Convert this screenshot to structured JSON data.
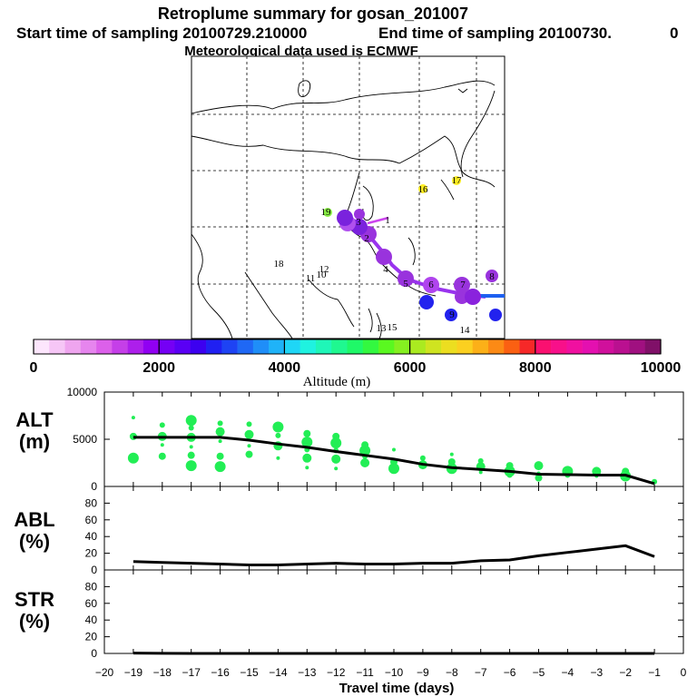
{
  "title": {
    "line1": "Retroplume summary for gosan_201007",
    "line2_left": "Start time of sampling 20100729.210000",
    "line2_right": "End time of sampling 20100730.",
    "line2_tail": "0",
    "line3": "Meteorological data used is ECMWF"
  },
  "colorbar": {
    "ticks": [
      "0",
      "2000",
      "4000",
      "6000",
      "8000",
      "10000"
    ],
    "label": "Altitude (m)",
    "colors": [
      "#fde6fd",
      "#f6c6f6",
      "#efa5ef",
      "#e685ee",
      "#dc60ea",
      "#c53fe8",
      "#ad1feb",
      "#9100f2",
      "#7500f5",
      "#5a00f5",
      "#3c00f0",
      "#2020f2",
      "#1e43f4",
      "#1f68f5",
      "#1f8ef8",
      "#1fb3f8",
      "#1fd6f6",
      "#1ff2e0",
      "#1ff6b8",
      "#1ff890",
      "#1ff868",
      "#33f840",
      "#5af820",
      "#85f020",
      "#aaea20",
      "#cfe420",
      "#ecde20",
      "#fbd020",
      "#fcb018",
      "#fc8a15",
      "#fb6012",
      "#f62828",
      "#fa1070",
      "#f8108a",
      "#f010a0",
      "#e410b0",
      "#d0109c",
      "#ba1090",
      "#a01080",
      "#801068"
    ]
  },
  "map": {
    "day_labels": [
      "1",
      "2",
      "3",
      "4",
      "5",
      "6",
      "7",
      "8",
      "9",
      "10",
      "11",
      "12",
      "13",
      "14",
      "15",
      "16",
      "17",
      "18",
      "19"
    ]
  },
  "chart_data": [
    {
      "type": "line",
      "panel": "ALT",
      "label_line1": "ALT",
      "label_line2": "(m)",
      "ylim": [
        0,
        10000
      ],
      "yticks": [
        "10000",
        "5000",
        "0"
      ],
      "x": [
        -19,
        -18,
        -17,
        -16,
        -15,
        -14,
        -13,
        -12,
        -11,
        -10,
        -9,
        -8,
        -7,
        -6,
        -5,
        -4,
        -3,
        -2,
        -1
      ],
      "y": [
        5200,
        5200,
        5200,
        5200,
        4900,
        4500,
        4150,
        3700,
        3300,
        2900,
        2350,
        2000,
        1800,
        1600,
        1300,
        1250,
        1200,
        1200,
        300
      ],
      "scatter": [
        {
          "x": -19,
          "y": 7300
        },
        {
          "x": -19,
          "y": 5300
        },
        {
          "x": -19,
          "y": 3000
        },
        {
          "x": -18,
          "y": 6500
        },
        {
          "x": -18,
          "y": 5300
        },
        {
          "x": -18,
          "y": 4400
        },
        {
          "x": -18,
          "y": 3200
        },
        {
          "x": -17,
          "y": 7000
        },
        {
          "x": -17,
          "y": 6200
        },
        {
          "x": -17,
          "y": 5200
        },
        {
          "x": -17,
          "y": 4200
        },
        {
          "x": -17,
          "y": 3300
        },
        {
          "x": -17,
          "y": 2200
        },
        {
          "x": -16,
          "y": 6700
        },
        {
          "x": -16,
          "y": 5800
        },
        {
          "x": -16,
          "y": 4800
        },
        {
          "x": -16,
          "y": 3200
        },
        {
          "x": -16,
          "y": 2100
        },
        {
          "x": -15,
          "y": 6600
        },
        {
          "x": -15,
          "y": 5500
        },
        {
          "x": -15,
          "y": 4300
        },
        {
          "x": -15,
          "y": 3400
        },
        {
          "x": -14,
          "y": 6300
        },
        {
          "x": -14,
          "y": 5400
        },
        {
          "x": -14,
          "y": 4300
        },
        {
          "x": -14,
          "y": 3000
        },
        {
          "x": -13,
          "y": 5600
        },
        {
          "x": -13,
          "y": 4700
        },
        {
          "x": -13,
          "y": 3900
        },
        {
          "x": -13,
          "y": 3000
        },
        {
          "x": -13,
          "y": 2000
        },
        {
          "x": -12,
          "y": 5300
        },
        {
          "x": -12,
          "y": 4600
        },
        {
          "x": -12,
          "y": 3800
        },
        {
          "x": -12,
          "y": 2900
        },
        {
          "x": -12,
          "y": 1900
        },
        {
          "x": -11,
          "y": 4400
        },
        {
          "x": -11,
          "y": 3800
        },
        {
          "x": -11,
          "y": 3200
        },
        {
          "x": -11,
          "y": 2500
        },
        {
          "x": -10,
          "y": 3900
        },
        {
          "x": -10,
          "y": 2600
        },
        {
          "x": -10,
          "y": 1900
        },
        {
          "x": -9,
          "y": 3000
        },
        {
          "x": -9,
          "y": 2300
        },
        {
          "x": -8,
          "y": 3400
        },
        {
          "x": -8,
          "y": 2600
        },
        {
          "x": -8,
          "y": 1900
        },
        {
          "x": -7,
          "y": 2700
        },
        {
          "x": -7,
          "y": 2100
        },
        {
          "x": -7,
          "y": 1500
        },
        {
          "x": -6,
          "y": 2200
        },
        {
          "x": -6,
          "y": 1600
        },
        {
          "x": -6,
          "y": 1200
        },
        {
          "x": -5,
          "y": 2200
        },
        {
          "x": -5,
          "y": 1400
        },
        {
          "x": -5,
          "y": 900
        },
        {
          "x": -4,
          "y": 1600
        },
        {
          "x": -4,
          "y": 1200
        },
        {
          "x": -3,
          "y": 1600
        },
        {
          "x": -3,
          "y": 1100
        },
        {
          "x": -2,
          "y": 1600
        },
        {
          "x": -2,
          "y": 1100
        },
        {
          "x": -1,
          "y": 500
        }
      ]
    },
    {
      "type": "line",
      "panel": "ABL",
      "label_line1": "ABL",
      "label_line2": "(%)",
      "ylim": [
        0,
        100
      ],
      "yticks": [
        "0",
        "20",
        "40",
        "60",
        "80"
      ],
      "x": [
        -19,
        -18,
        -17,
        -16,
        -15,
        -14,
        -13,
        -12,
        -11,
        -10,
        -9,
        -8,
        -7,
        -6,
        -5,
        -4,
        -3,
        -2,
        -1
      ],
      "y": [
        10,
        9,
        8,
        7,
        6,
        6,
        7,
        8,
        7,
        7,
        8,
        8,
        11,
        12,
        17,
        21,
        25,
        29,
        16
      ]
    },
    {
      "type": "line",
      "panel": "STR",
      "label_line1": "STR",
      "label_line2": "(%)",
      "ylim": [
        0,
        100
      ],
      "yticks": [
        "0",
        "20",
        "40",
        "60",
        "80"
      ],
      "x": [
        -19,
        -18,
        -17,
        -16,
        -15,
        -14,
        -13,
        -12,
        -11,
        -10,
        -9,
        -8,
        -7,
        -6,
        -5,
        -4,
        -3,
        -2,
        -1
      ],
      "y": [
        0.4,
        0.2,
        0,
        0,
        0,
        0,
        0,
        0,
        0,
        0,
        0,
        0,
        0,
        0,
        0,
        0,
        0,
        0,
        0
      ]
    }
  ],
  "xaxis": {
    "ticks": [
      "−20",
      "−19",
      "−18",
      "−17",
      "−16",
      "−15",
      "−14",
      "−13",
      "−12",
      "−11",
      "−10",
      "−9",
      "−8",
      "−7",
      "−6",
      "−5",
      "−4",
      "−3",
      "−2",
      "−1",
      "0"
    ],
    "label": "Travel time (days)"
  },
  "colors": {
    "scatter": "#22ee55",
    "line": "#000000",
    "trajectory": "#cc33ee"
  }
}
